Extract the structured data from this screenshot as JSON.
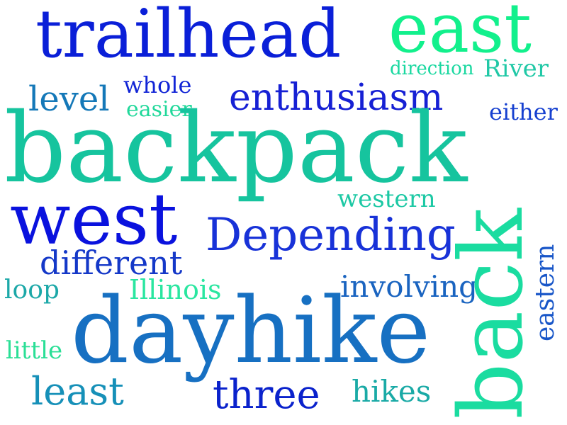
{
  "words": [
    {
      "text": "trailhead",
      "color": "#0a1fd8"
    },
    {
      "text": "east",
      "color": "#12f08c"
    },
    {
      "text": "direction",
      "color": "#1ad8a0"
    },
    {
      "text": "River",
      "color": "#20c8a6"
    },
    {
      "text": "whole",
      "color": "#1225d6"
    },
    {
      "text": "level",
      "color": "#1478b8"
    },
    {
      "text": "easier",
      "color": "#20d89a"
    },
    {
      "text": "enthusiasm",
      "color": "#1620d4"
    },
    {
      "text": "either",
      "color": "#1640d0"
    },
    {
      "text": "backpack",
      "color": "#16c49e"
    },
    {
      "text": "west",
      "color": "#0a12de"
    },
    {
      "text": "western",
      "color": "#1cc8a4"
    },
    {
      "text": "Depending",
      "color": "#1832d8"
    },
    {
      "text": "different",
      "color": "#1438c8"
    },
    {
      "text": "loop",
      "color": "#1ca8a8"
    },
    {
      "text": "Illinois",
      "color": "#2ae6a0"
    },
    {
      "text": "involving",
      "color": "#1a64c0"
    },
    {
      "text": "dayhike",
      "color": "#1770c2"
    },
    {
      "text": "little",
      "color": "#2adf96"
    },
    {
      "text": "least",
      "color": "#1690b8"
    },
    {
      "text": "three",
      "color": "#0a22cc"
    },
    {
      "text": "hikes",
      "color": "#1aaaa6"
    },
    {
      "text": "back",
      "color": "#1adca0"
    },
    {
      "text": "eastern",
      "color": "#1856c8"
    }
  ]
}
